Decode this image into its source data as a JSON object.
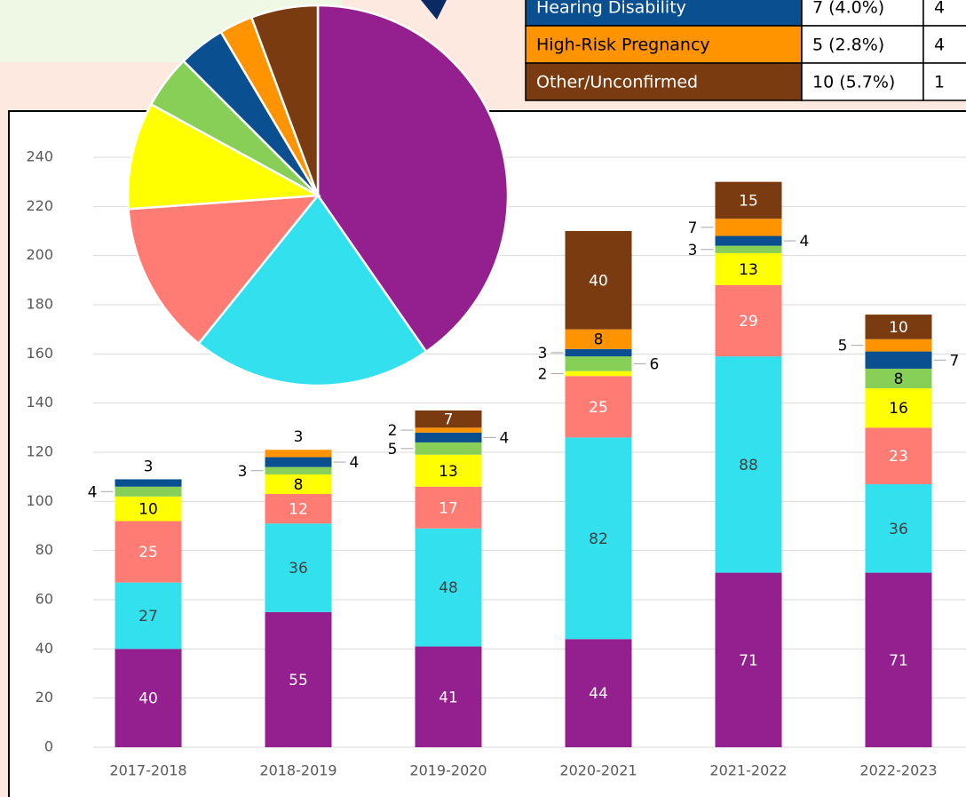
{
  "chart_data": [
    {
      "type": "bar",
      "categories": [
        "2017-2018",
        "2018-2019",
        "2019-2020",
        "2020-2021",
        "2021-2022",
        "2022-2023"
      ],
      "series": [
        {
          "color": "#941f8f",
          "label_color": "#ffffff",
          "values": [
            40,
            55,
            41,
            44,
            71,
            71
          ]
        },
        {
          "color": "#33e0ee",
          "label_color": "#404040",
          "values": [
            27,
            36,
            48,
            82,
            88,
            36
          ]
        },
        {
          "color": "#ff7c75",
          "label_color": "#ffffff",
          "values": [
            25,
            12,
            17,
            25,
            29,
            23
          ]
        },
        {
          "color": "#ffff00",
          "label_color": "#000000",
          "values": [
            10,
            8,
            13,
            2,
            13,
            16
          ]
        },
        {
          "color": "#88cf58",
          "label_color": "#000000",
          "values": [
            4,
            3,
            5,
            6,
            3,
            8
          ]
        },
        {
          "color": "#0a4f8f",
          "label_color": "#ffffff",
          "values": [
            3,
            4,
            4,
            3,
            4,
            7
          ]
        },
        {
          "color": "#ff9400",
          "label_color": "#000000",
          "values": [
            null,
            3,
            2,
            8,
            7,
            5
          ]
        },
        {
          "color": "#7a3b10",
          "label_color": "#ffffff",
          "values": [
            null,
            null,
            7,
            40,
            15,
            10
          ]
        }
      ],
      "ylim": [
        0,
        240
      ],
      "yticks": [
        0,
        20,
        40,
        60,
        80,
        100,
        120,
        140,
        160,
        180,
        200,
        220,
        240
      ],
      "grid": true
    },
    {
      "type": "pie",
      "values": [
        71,
        36,
        23,
        16,
        8,
        7,
        5,
        10
      ],
      "colors": [
        "#941f8f",
        "#33e0ee",
        "#ff7c75",
        "#ffff00",
        "#88cf58",
        "#0a4f8f",
        "#ff9400",
        "#7a3b10"
      ]
    }
  ],
  "table": {
    "rows": [
      [
        {
          "text": "Hearing Disability",
          "bg": "#0a4f8f",
          "fg": "#ffffff"
        },
        "7 (4.0%)",
        "4"
      ],
      [
        {
          "text": "High-Risk Pregnancy",
          "bg": "#ff9400",
          "fg": "#000000"
        },
        "5 (2.8%)",
        "4"
      ],
      [
        {
          "text": "Other/Unconfirmed",
          "bg": "#7a3b10",
          "fg": "#ffffff"
        },
        "10 (5.7%)",
        "1"
      ]
    ]
  }
}
